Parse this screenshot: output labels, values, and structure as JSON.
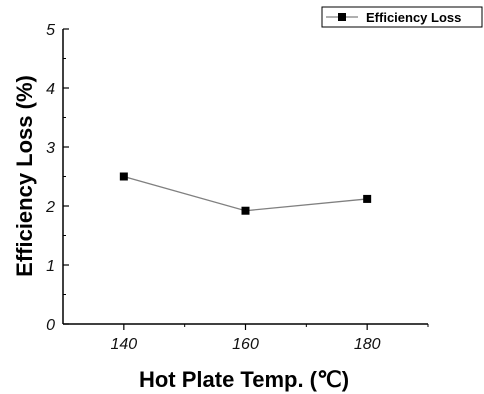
{
  "chart_data": {
    "type": "line",
    "x": [
      140,
      160,
      180
    ],
    "series": [
      {
        "name": "Efficiency Loss",
        "values": [
          2.5,
          1.92,
          2.12
        ]
      }
    ],
    "xlabel": "Hot Plate Temp. (℃)",
    "ylabel": "Efficiency Loss (%)",
    "xlim": [
      130,
      190
    ],
    "ylim": [
      0,
      5
    ],
    "x_ticks": [
      140,
      160,
      180
    ],
    "y_ticks": [
      0,
      1,
      2,
      3,
      4,
      5
    ],
    "x_tick_labels": [
      "140",
      "160",
      "180"
    ],
    "y_tick_labels": [
      "0",
      "1",
      "2",
      "3",
      "4",
      "5"
    ],
    "grid": false,
    "legend_position": "top-right",
    "line_color": "#808080",
    "marker_color": "#000000",
    "marker": "square"
  }
}
